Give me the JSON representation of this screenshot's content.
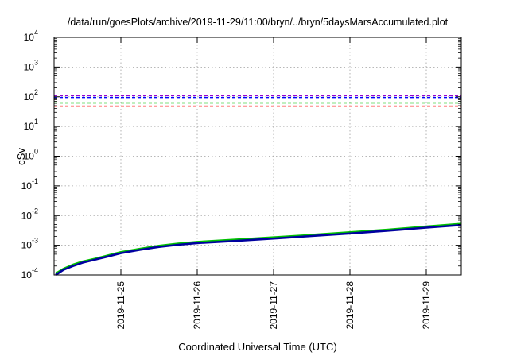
{
  "chart_data": {
    "type": "line",
    "title": "/data/run/goesPlots/archive/2019-11-29/11:00/bryn/../bryn/5daysMarsAccumulated.plot",
    "xlabel": "Coordinated Universal Time (UTC)",
    "ylabel": "cSv",
    "y_scale": "log",
    "ylim": [
      0.0001,
      10000
    ],
    "xlim": [
      "2019-11-24T03:00",
      "2019-11-29T11:00"
    ],
    "x_ticks": [
      "2019-11-25",
      "2019-11-26",
      "2019-11-27",
      "2019-11-28",
      "2019-11-29"
    ],
    "y_ticks": [
      {
        "value": 0.0001,
        "base": "10",
        "exp": "-4"
      },
      {
        "value": 0.001,
        "base": "10",
        "exp": "-3"
      },
      {
        "value": 0.01,
        "base": "10",
        "exp": "-2"
      },
      {
        "value": 0.1,
        "base": "10",
        "exp": "-1"
      },
      {
        "value": 1,
        "base": "10",
        "exp": "0"
      },
      {
        "value": 10,
        "base": "10",
        "exp": "1"
      },
      {
        "value": 100,
        "base": "10",
        "exp": "2"
      },
      {
        "value": 1000,
        "base": "10",
        "exp": "3"
      },
      {
        "value": 10000,
        "base": "10",
        "exp": "4"
      }
    ],
    "grid": true,
    "reference_lines": [
      {
        "value": 110,
        "color": "#9400d3",
        "style": "dashed"
      },
      {
        "value": 95,
        "color": "#0000ff",
        "style": "dashed"
      },
      {
        "value": 62,
        "color": "#00c000",
        "style": "dashed"
      },
      {
        "value": 48,
        "color": "#ff0000",
        "style": "dashed"
      }
    ],
    "series": [
      {
        "color": "#00c000",
        "x": [
          "2019-11-24T03:30",
          "2019-11-24T06:00",
          "2019-11-24T09:00",
          "2019-11-24T12:00",
          "2019-11-24T16:00",
          "2019-11-24T20:00",
          "2019-11-25T00:00",
          "2019-11-25T06:00",
          "2019-11-25T12:00",
          "2019-11-25T18:00",
          "2019-11-26T00:00",
          "2019-11-26T12:00",
          "2019-11-27T00:00",
          "2019-11-27T12:00",
          "2019-11-28T00:00",
          "2019-11-28T12:00",
          "2019-11-29T00:00",
          "2019-11-29T11:00"
        ],
        "values": [
          0.00011,
          0.00016,
          0.00022,
          0.00028,
          0.00035,
          0.00045,
          0.00058,
          0.00075,
          0.00095,
          0.00112,
          0.00128,
          0.00152,
          0.00182,
          0.0022,
          0.0027,
          0.0033,
          0.0042,
          0.0052
        ]
      },
      {
        "color": "#0000a0",
        "x": [
          "2019-11-24T03:30",
          "2019-11-24T06:00",
          "2019-11-24T09:00",
          "2019-11-24T12:00",
          "2019-11-24T16:00",
          "2019-11-24T20:00",
          "2019-11-25T00:00",
          "2019-11-25T06:00",
          "2019-11-25T12:00",
          "2019-11-25T18:00",
          "2019-11-26T00:00",
          "2019-11-26T12:00",
          "2019-11-27T00:00",
          "2019-11-27T12:00",
          "2019-11-28T00:00",
          "2019-11-28T12:00",
          "2019-11-29T00:00",
          "2019-11-29T11:00"
        ],
        "values": [
          0.0001,
          0.00015,
          0.0002,
          0.00026,
          0.00033,
          0.00042,
          0.00054,
          0.0007,
          0.00088,
          0.00104,
          0.00118,
          0.0014,
          0.00168,
          0.00205,
          0.0025,
          0.0031,
          0.0039,
          0.0048
        ]
      }
    ]
  }
}
